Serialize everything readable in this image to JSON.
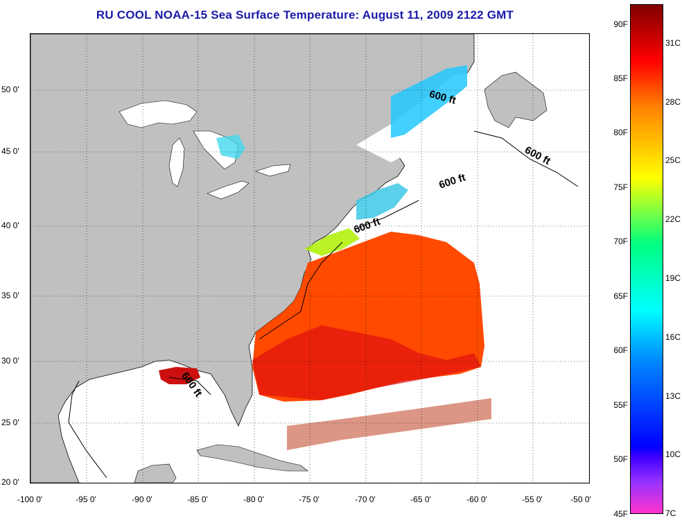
{
  "title": "RU COOL  NOAA-15  Sea Surface Temperature:  August 11, 2009 2122 GMT",
  "axes": {
    "lon_labels": [
      "-100 0'",
      "-95 0'",
      "-90 0'",
      "-85 0'",
      "-80 0'",
      "-75 0'",
      "-70 0'",
      "-65 0'",
      "-60 0'",
      "-55 0'",
      "-50 0'"
    ],
    "lat_labels": [
      "50 0'",
      "45 0'",
      "40 0'",
      "35 0'",
      "30 0'",
      "25 0'",
      "20 0'"
    ]
  },
  "contour_labels": [
    "600 ft",
    "600 ft",
    "600 ft",
    "600 ft",
    "600 ft"
  ],
  "colorbar": {
    "fahrenheit": [
      "90F",
      "85F",
      "80F",
      "75F",
      "70F",
      "65F",
      "60F",
      "55F",
      "50F",
      "45F"
    ],
    "celsius": [
      "31C",
      "28C",
      "25C",
      "22C",
      "19C",
      "16C",
      "13C",
      "10C",
      "7C"
    ]
  },
  "colors": {
    "land": "#c0c0c0",
    "title": "#1a1aa8",
    "warm": "#ff4000",
    "cool": "#00c8ff"
  }
}
